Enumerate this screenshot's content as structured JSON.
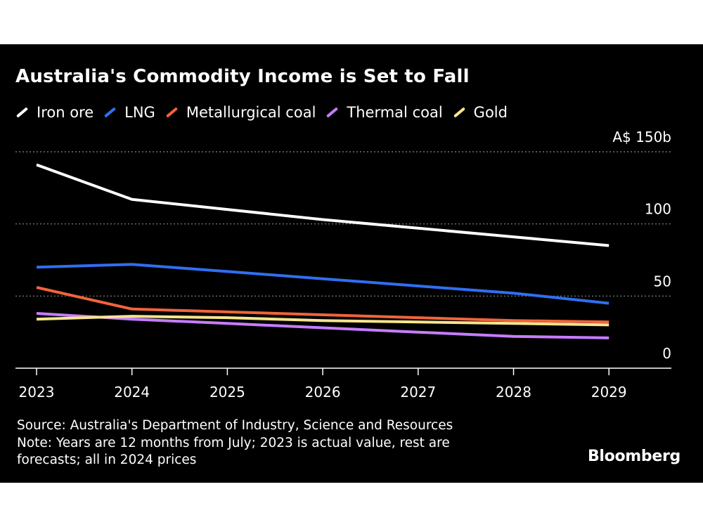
{
  "chart_data": {
    "type": "line",
    "title": "Australia's Commodity Income is Set to Fall",
    "x": [
      "2023",
      "2024",
      "2025",
      "2026",
      "2027",
      "2028",
      "2029"
    ],
    "y_ticks": [
      {
        "value": 150,
        "label": "A$ 150b"
      },
      {
        "value": 100,
        "label": "100"
      },
      {
        "value": 50,
        "label": "50"
      },
      {
        "value": 0,
        "label": "0"
      }
    ],
    "ylim": [
      0,
      150
    ],
    "y_axis_side": "right",
    "grid": "dotted horizontal",
    "legend_position": "top-left",
    "series": [
      {
        "name": "Iron ore",
        "color": "#ffffff",
        "values": [
          141,
          117,
          110,
          103,
          97,
          91,
          85
        ]
      },
      {
        "name": "LNG",
        "color": "#2f6ff0",
        "values": [
          70,
          72,
          67,
          62,
          57,
          52,
          45
        ]
      },
      {
        "name": "Metallurgical coal",
        "color": "#f0643c",
        "values": [
          56,
          41,
          39,
          37,
          35,
          33,
          32
        ]
      },
      {
        "name": "Thermal coal",
        "color": "#c77cff",
        "values": [
          38,
          34,
          31,
          28,
          25,
          22,
          21
        ]
      },
      {
        "name": "Gold",
        "color": "#f6e58d",
        "values": [
          34,
          36,
          35,
          33,
          32,
          31,
          30
        ]
      }
    ]
  },
  "footer": {
    "source": "Source: Australia's Department of Industry, Science and Resources",
    "note_line1": "Note: Years are 12 months from July; 2023 is actual value, rest are",
    "note_line2": "forecasts; all in 2024 prices"
  },
  "brand": "Bloomberg"
}
